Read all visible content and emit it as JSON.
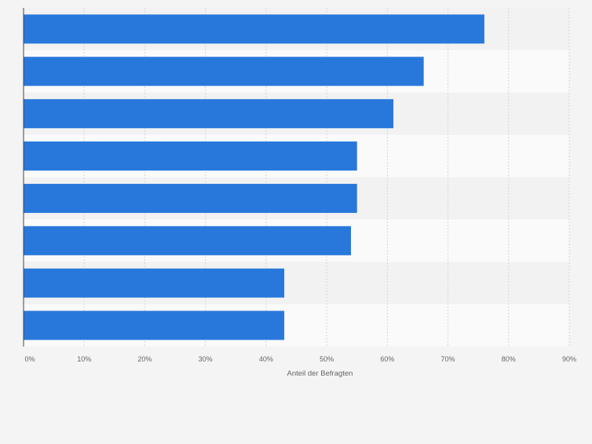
{
  "chart_data": {
    "type": "bar",
    "orientation": "horizontal",
    "categories": [
      "",
      "",
      "",
      "",
      "",
      "",
      "",
      ""
    ],
    "values": [
      76,
      66,
      61,
      55,
      55,
      54,
      43,
      43
    ],
    "xlabel": "Anteil der Befragten",
    "ylabel": "",
    "xlim": [
      0,
      90
    ],
    "xticks": [
      "0%",
      "10%",
      "20%",
      "30%",
      "40%",
      "50%",
      "60%",
      "70%",
      "80%",
      "90%"
    ],
    "grid": true,
    "legend": "none",
    "colors": {
      "bar": "#2878dc",
      "band_light": "#fafafa",
      "band_dark": "#f2f2f2",
      "background": "#f4f4f4",
      "grid": "#d6d6d6",
      "axis": "#444444"
    }
  }
}
